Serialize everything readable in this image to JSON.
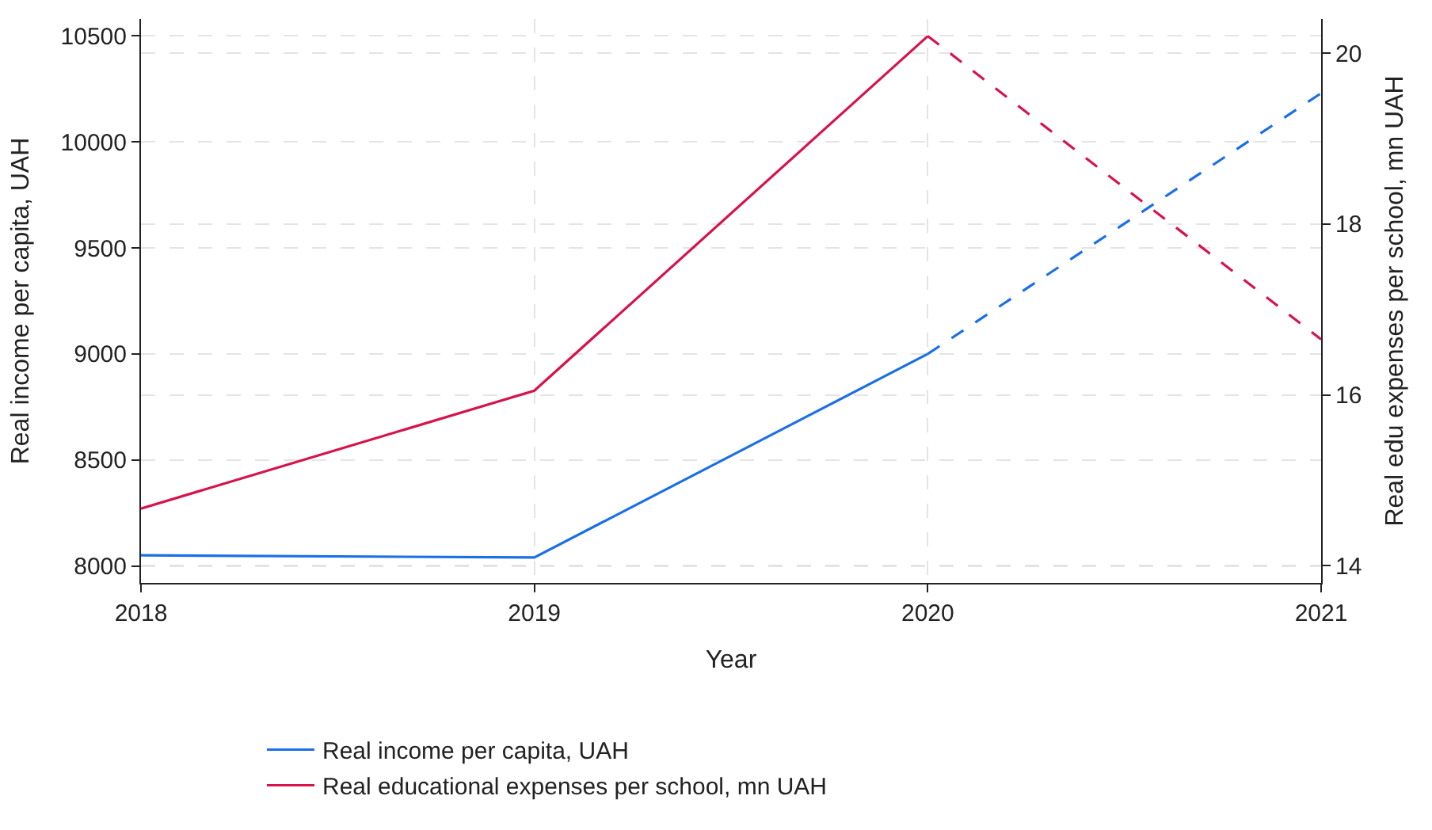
{
  "chart_data": {
    "type": "line",
    "xlabel": "Year",
    "ylabel": "Real income per capita, UAH",
    "y2label": "Real edu expenses per school, mn UAH",
    "x": [
      2018,
      2019,
      2020,
      2021
    ],
    "series": [
      {
        "name": "Real income per capita, UAH",
        "color": "#1a6fe8",
        "values": [
          8050,
          8040,
          9000,
          null
        ],
        "line_style": "solid"
      },
      {
        "name": "Real educational expenses per school, mn UAH",
        "color": "#d6134a",
        "values": [
          14.67,
          16.05,
          20.2,
          null
        ],
        "axis": "y2",
        "line_style": "solid"
      },
      {
        "color": "#1a6fe8",
        "values": [
          null,
          null,
          9000,
          10230
        ],
        "line_style": "dashed"
      },
      {
        "color": "#d6134a",
        "values": [
          null,
          null,
          20.2,
          16.65
        ],
        "axis": "y2",
        "line_style": "dashed"
      }
    ],
    "xlim": [
      2018,
      2021
    ],
    "xticks": [
      2018,
      2019,
      2020,
      2021
    ],
    "ylim": [
      7920,
      10580
    ],
    "yticks": [
      8000,
      8500,
      9000,
      9500,
      10000,
      10500
    ],
    "y2lim": [
      13.8,
      20.4
    ],
    "y2ticks": [
      14,
      16,
      18,
      20
    ],
    "grid": true,
    "legend": "bottom",
    "marker": "none"
  }
}
